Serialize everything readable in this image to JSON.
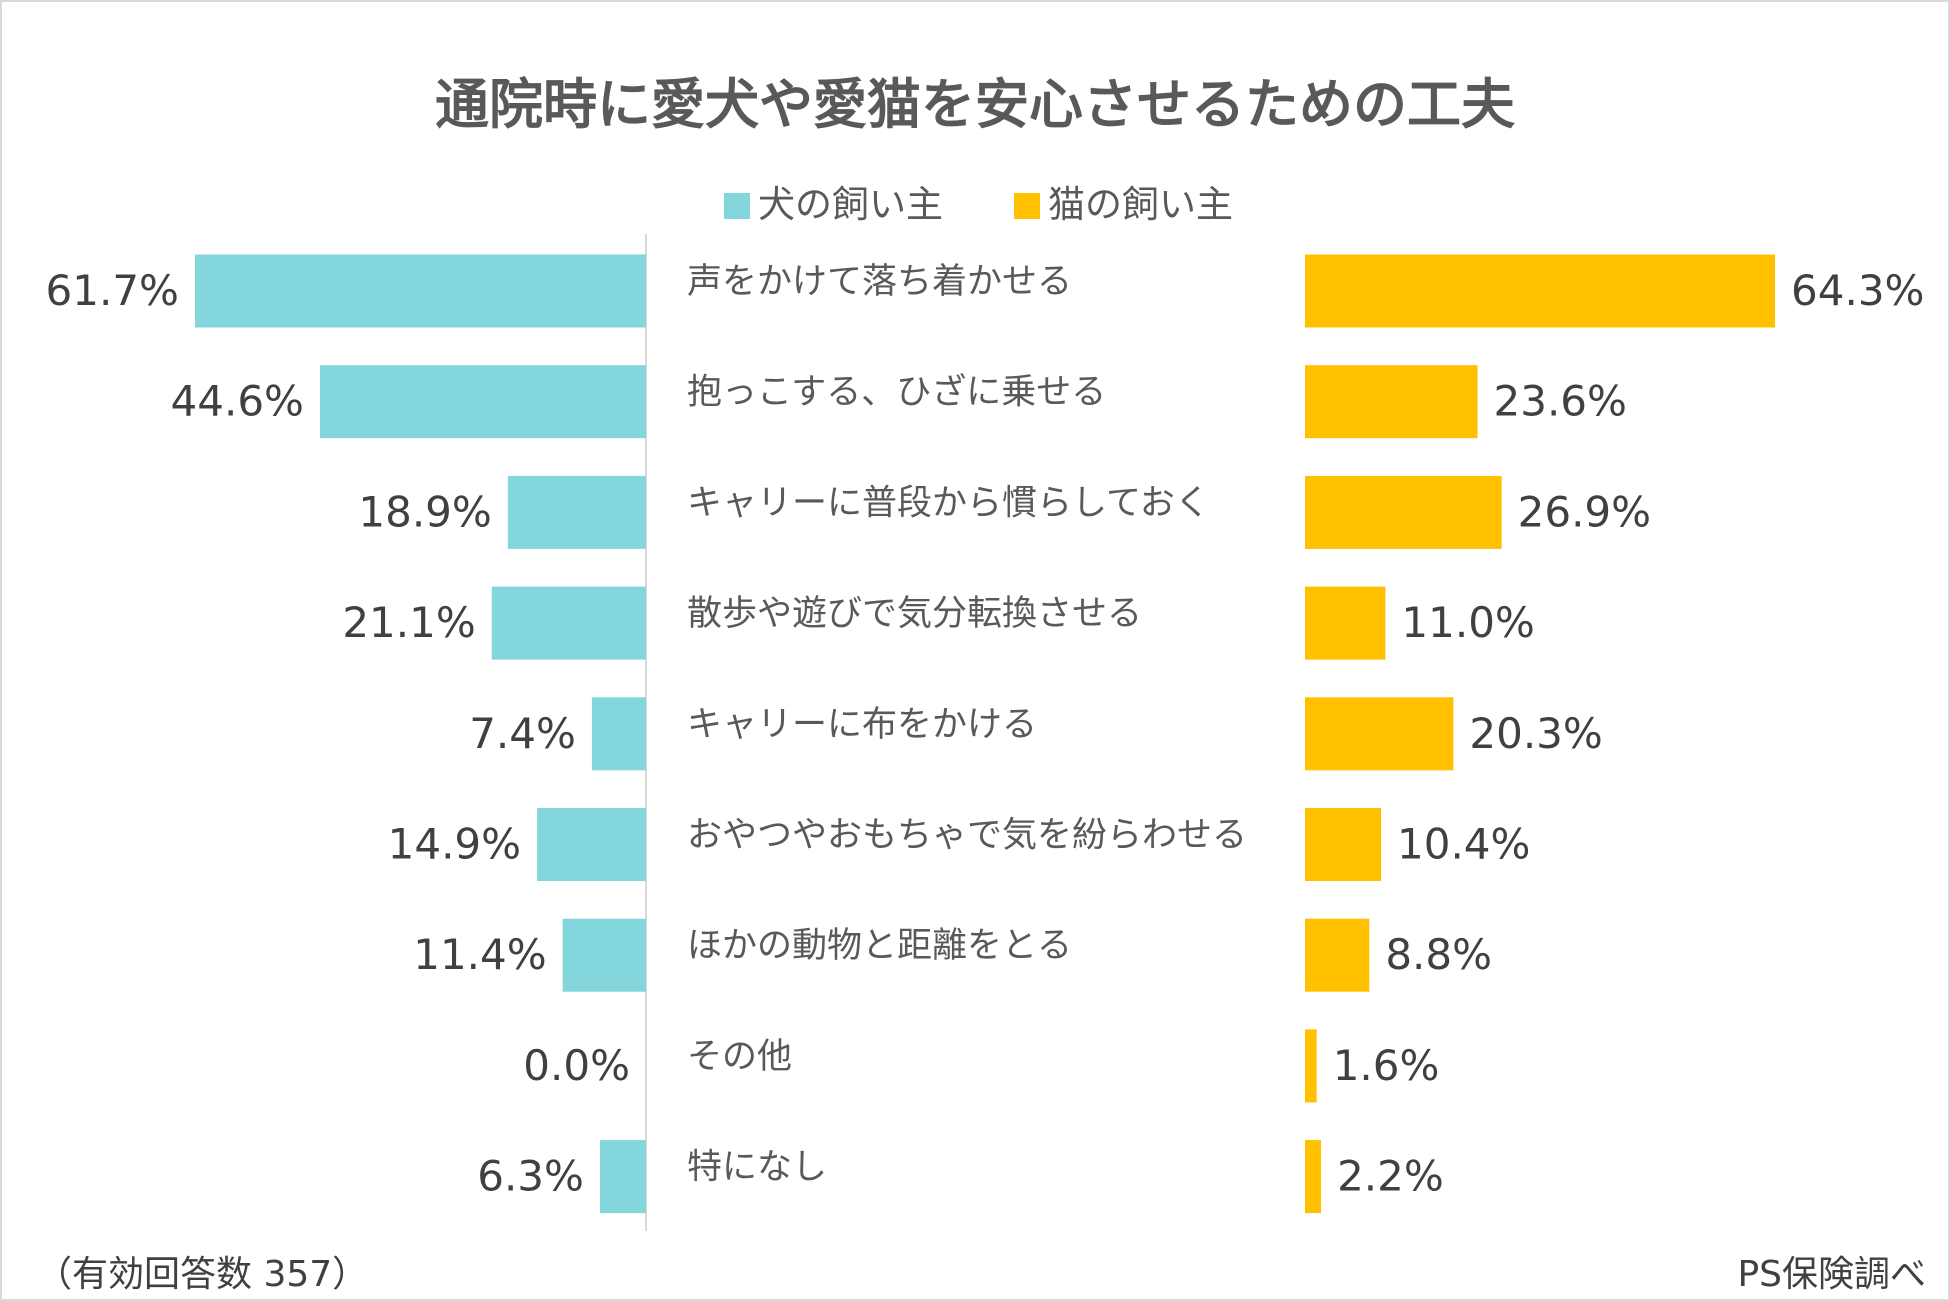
{
  "chart_data": {
    "type": "bar",
    "orientation": "horizontal-butterfly",
    "title": "通院時に愛犬や愛猫を安心させるための工夫",
    "categories": [
      "声をかけて落ち着かせる",
      "抱っこする、ひざに乗せる",
      "キャリーに普段から慣らしておく",
      "散歩や遊びで気分転換させる",
      "キャリーに布をかける",
      "おやつやおもちゃで気を紛らわせる",
      "ほかの動物と距離をとる",
      "その他",
      "特になし"
    ],
    "series": [
      {
        "name": "犬の飼い主",
        "color": "#83D6DB",
        "values": [
          61.7,
          44.6,
          18.9,
          21.1,
          7.4,
          14.9,
          11.4,
          0.0,
          6.3
        ]
      },
      {
        "name": "猫の飼い主",
        "color": "#FFC000",
        "values": [
          64.3,
          23.6,
          26.9,
          11.0,
          20.3,
          10.4,
          8.8,
          1.6,
          2.2
        ]
      }
    ],
    "value_format": "%",
    "legend": "top-center",
    "grid": false
  },
  "footer": {
    "left": "（有効回答数 357）",
    "right": "PS保険調べ"
  }
}
